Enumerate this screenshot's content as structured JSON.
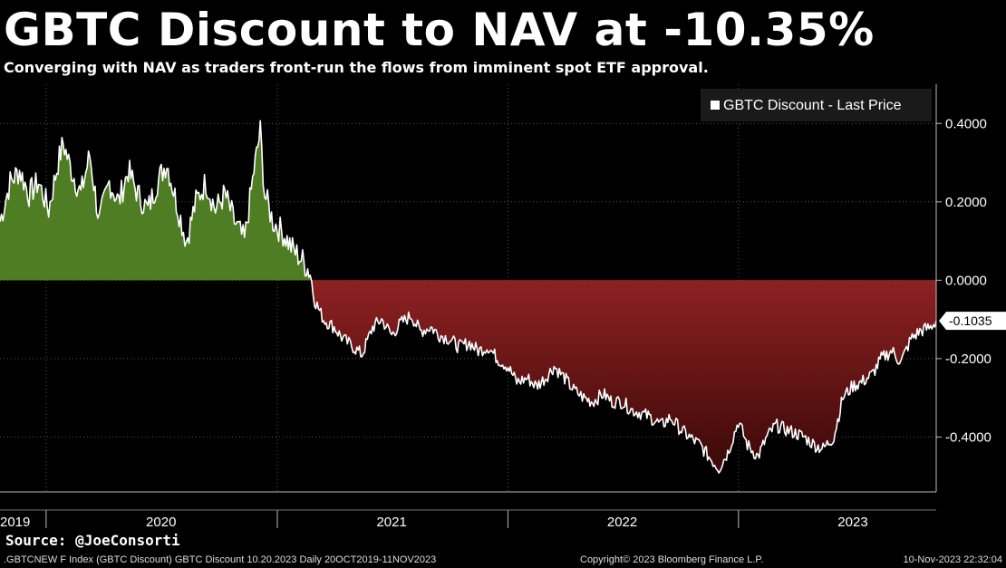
{
  "title": "GBTC Discount to NAV at -10.35%",
  "subtitle": "Converging with NAV as traders front-run the flows from imminent spot ETF approval.",
  "source": "Source: @JoeConsorti",
  "footer": {
    "left": ".GBTCNEW F Index (GBTC Discount) GBTC Discount 10.20.2023  Daily 20OCT2019-11NOV2023",
    "center": "Copyright© 2023 Bloomberg Finance L.P.",
    "right": "10-Nov-2023 22:32:04"
  },
  "colors": {
    "positive_fill": "#4f7d24",
    "negative_fill": "#8a1e1e",
    "line": "#ffffff",
    "grid": "#555555"
  },
  "chart_data": {
    "type": "area",
    "title": "GBTC Discount to NAV at -10.35%",
    "legend": {
      "label": "GBTC Discount - Last Price",
      "placement": "top-right"
    },
    "last_value_label": "-0.1035",
    "ylim": [
      -0.54,
      0.5
    ],
    "y_ticks": [
      {
        "value": 0.4,
        "label": "0.4000"
      },
      {
        "value": 0.2,
        "label": "0.2000"
      },
      {
        "value": 0.0,
        "label": "0.0000"
      },
      {
        "value": -0.2,
        "label": "-0.2000"
      },
      {
        "value": -0.4,
        "label": "-0.4000"
      }
    ],
    "x_range": [
      "2019-10-20",
      "2023-11-10"
    ],
    "x_labels": [
      {
        "date": "2019-10-20",
        "label": "2019"
      },
      {
        "date": "2020-07-01",
        "label": "2020"
      },
      {
        "date": "2021-07-01",
        "label": "2021"
      },
      {
        "date": "2022-07-01",
        "label": "2022"
      },
      {
        "date": "2023-07-01",
        "label": "2023"
      }
    ],
    "year_boundaries": [
      "2020-01-01",
      "2021-01-01",
      "2022-01-01",
      "2023-01-01"
    ],
    "grid": true,
    "points": [
      [
        "2019-10-20",
        0.15
      ],
      [
        "2019-11-05",
        0.25
      ],
      [
        "2019-11-20",
        0.28
      ],
      [
        "2019-12-05",
        0.22
      ],
      [
        "2019-12-20",
        0.25
      ],
      [
        "2020-01-05",
        0.18
      ],
      [
        "2020-01-20",
        0.3
      ],
      [
        "2020-01-28",
        0.35
      ],
      [
        "2020-02-10",
        0.28
      ],
      [
        "2020-02-25",
        0.22
      ],
      [
        "2020-03-10",
        0.32
      ],
      [
        "2020-03-25",
        0.15
      ],
      [
        "2020-04-10",
        0.25
      ],
      [
        "2020-04-25",
        0.2
      ],
      [
        "2020-05-10",
        0.28
      ],
      [
        "2020-05-25",
        0.22
      ],
      [
        "2020-06-10",
        0.18
      ],
      [
        "2020-06-25",
        0.25
      ],
      [
        "2020-07-10",
        0.3
      ],
      [
        "2020-07-25",
        0.2
      ],
      [
        "2020-08-10",
        0.1
      ],
      [
        "2020-08-25",
        0.2
      ],
      [
        "2020-09-10",
        0.25
      ],
      [
        "2020-09-25",
        0.18
      ],
      [
        "2020-10-10",
        0.22
      ],
      [
        "2020-10-25",
        0.15
      ],
      [
        "2020-11-10",
        0.1
      ],
      [
        "2020-11-25",
        0.28
      ],
      [
        "2020-12-05",
        0.38
      ],
      [
        "2020-12-12",
        0.22
      ],
      [
        "2020-12-25",
        0.15
      ],
      [
        "2021-01-10",
        0.12
      ],
      [
        "2021-01-25",
        0.08
      ],
      [
        "2021-02-10",
        0.05
      ],
      [
        "2021-02-22",
        0.02
      ],
      [
        "2021-03-01",
        -0.05
      ],
      [
        "2021-03-15",
        -0.1
      ],
      [
        "2021-04-01",
        -0.12
      ],
      [
        "2021-04-15",
        -0.15
      ],
      [
        "2021-05-01",
        -0.17
      ],
      [
        "2021-05-15",
        -0.19
      ],
      [
        "2021-06-01",
        -0.12
      ],
      [
        "2021-06-15",
        -0.1
      ],
      [
        "2021-07-01",
        -0.14
      ],
      [
        "2021-07-15",
        -0.11
      ],
      [
        "2021-08-01",
        -0.09
      ],
      [
        "2021-08-15",
        -0.13
      ],
      [
        "2021-09-01",
        -0.12
      ],
      [
        "2021-09-15",
        -0.14
      ],
      [
        "2021-10-01",
        -0.15
      ],
      [
        "2021-10-15",
        -0.17
      ],
      [
        "2021-11-01",
        -0.16
      ],
      [
        "2021-11-15",
        -0.18
      ],
      [
        "2021-12-01",
        -0.17
      ],
      [
        "2021-12-15",
        -0.2
      ],
      [
        "2022-01-01",
        -0.22
      ],
      [
        "2022-01-15",
        -0.26
      ],
      [
        "2022-02-01",
        -0.25
      ],
      [
        "2022-02-15",
        -0.27
      ],
      [
        "2022-03-01",
        -0.25
      ],
      [
        "2022-03-15",
        -0.22
      ],
      [
        "2022-04-01",
        -0.25
      ],
      [
        "2022-04-15",
        -0.28
      ],
      [
        "2022-05-01",
        -0.3
      ],
      [
        "2022-05-15",
        -0.31
      ],
      [
        "2022-06-01",
        -0.29
      ],
      [
        "2022-06-15",
        -0.31
      ],
      [
        "2022-07-01",
        -0.31
      ],
      [
        "2022-07-15",
        -0.33
      ],
      [
        "2022-08-01",
        -0.34
      ],
      [
        "2022-08-15",
        -0.35
      ],
      [
        "2022-09-01",
        -0.37
      ],
      [
        "2022-09-15",
        -0.35
      ],
      [
        "2022-10-01",
        -0.38
      ],
      [
        "2022-10-15",
        -0.4
      ],
      [
        "2022-11-01",
        -0.42
      ],
      [
        "2022-11-15",
        -0.45
      ],
      [
        "2022-12-01",
        -0.48
      ],
      [
        "2022-12-15",
        -0.44
      ],
      [
        "2023-01-01",
        -0.36
      ],
      [
        "2023-01-15",
        -0.42
      ],
      [
        "2023-02-01",
        -0.45
      ],
      [
        "2023-02-15",
        -0.4
      ],
      [
        "2023-03-01",
        -0.37
      ],
      [
        "2023-03-15",
        -0.38
      ],
      [
        "2023-04-01",
        -0.39
      ],
      [
        "2023-04-15",
        -0.4
      ],
      [
        "2023-05-01",
        -0.42
      ],
      [
        "2023-05-15",
        -0.43
      ],
      [
        "2023-06-01",
        -0.4
      ],
      [
        "2023-06-15",
        -0.3
      ],
      [
        "2023-07-01",
        -0.27
      ],
      [
        "2023-07-15",
        -0.26
      ],
      [
        "2023-08-01",
        -0.24
      ],
      [
        "2023-08-15",
        -0.2
      ],
      [
        "2023-09-01",
        -0.18
      ],
      [
        "2023-09-15",
        -0.21
      ],
      [
        "2023-10-01",
        -0.15
      ],
      [
        "2023-10-15",
        -0.13
      ],
      [
        "2023-11-01",
        -0.12
      ],
      [
        "2023-11-10",
        -0.1035
      ]
    ]
  }
}
